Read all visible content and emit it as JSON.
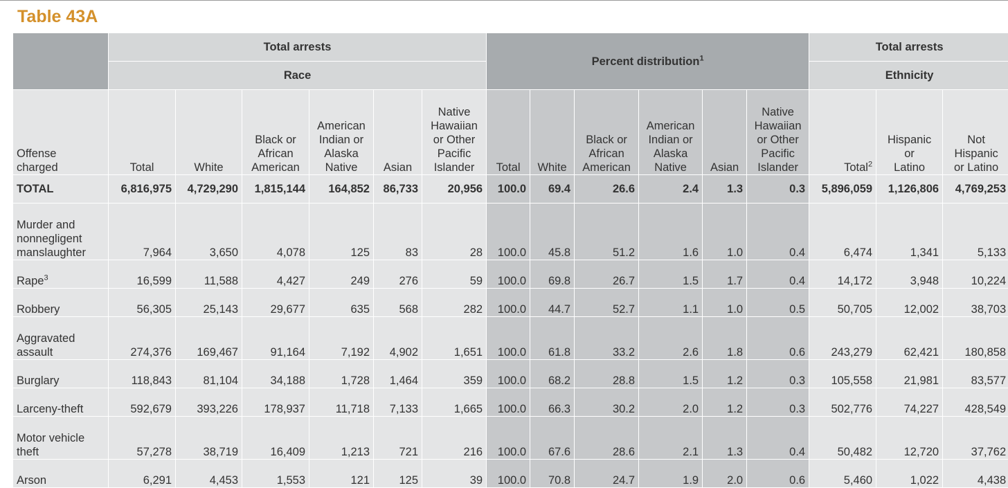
{
  "title": "Table 43A",
  "groups": {
    "total_arrests": "Total arrests",
    "race": "Race",
    "percent_distribution": "Percent distribution",
    "percent_distribution_note": "1",
    "total_arrests_2": "Total arrests",
    "ethnicity": "Ethnicity"
  },
  "columns": {
    "offense": [
      "Offense",
      "charged"
    ],
    "total": [
      "Total"
    ],
    "white": [
      "White"
    ],
    "black": [
      "Black or",
      "African",
      "American"
    ],
    "aian": [
      "American",
      "Indian or",
      "Alaska",
      "Native"
    ],
    "asian": [
      "Asian"
    ],
    "nhopi": [
      "Native",
      "Hawaiian",
      "or Other",
      "Pacific",
      "Islander"
    ],
    "eth_total": "Total",
    "eth_total_note": "2",
    "hispanic": [
      "Hispanic",
      "or",
      "Latino"
    ],
    "not_hispanic": [
      "Not",
      "Hispanic",
      "or Latino"
    ]
  },
  "rows": [
    {
      "offense": [
        "TOTAL"
      ],
      "note": "",
      "bold": true,
      "race": [
        "6,816,975",
        "4,729,290",
        "1,815,144",
        "164,852",
        "86,733",
        "20,956"
      ],
      "pct": [
        "100.0",
        "69.4",
        "26.6",
        "2.4",
        "1.3",
        "0.3"
      ],
      "eth": [
        "5,896,059",
        "1,126,806",
        "4,769,253"
      ]
    },
    {
      "offense": [
        "Murder and",
        "nonnegligent",
        "manslaughter"
      ],
      "note": "",
      "bold": false,
      "race": [
        "7,964",
        "3,650",
        "4,078",
        "125",
        "83",
        "28"
      ],
      "pct": [
        "100.0",
        "45.8",
        "51.2",
        "1.6",
        "1.0",
        "0.4"
      ],
      "eth": [
        "6,474",
        "1,341",
        "5,133"
      ]
    },
    {
      "offense": [
        "Rape"
      ],
      "note": "3",
      "bold": false,
      "race": [
        "16,599",
        "11,588",
        "4,427",
        "249",
        "276",
        "59"
      ],
      "pct": [
        "100.0",
        "69.8",
        "26.7",
        "1.5",
        "1.7",
        "0.4"
      ],
      "eth": [
        "14,172",
        "3,948",
        "10,224"
      ]
    },
    {
      "offense": [
        "Robbery"
      ],
      "note": "",
      "bold": false,
      "race": [
        "56,305",
        "25,143",
        "29,677",
        "635",
        "568",
        "282"
      ],
      "pct": [
        "100.0",
        "44.7",
        "52.7",
        "1.1",
        "1.0",
        "0.5"
      ],
      "eth": [
        "50,705",
        "12,002",
        "38,703"
      ]
    },
    {
      "offense": [
        "Aggravated",
        "assault"
      ],
      "note": "",
      "bold": false,
      "race": [
        "274,376",
        "169,467",
        "91,164",
        "7,192",
        "4,902",
        "1,651"
      ],
      "pct": [
        "100.0",
        "61.8",
        "33.2",
        "2.6",
        "1.8",
        "0.6"
      ],
      "eth": [
        "243,279",
        "62,421",
        "180,858"
      ]
    },
    {
      "offense": [
        "Burglary"
      ],
      "note": "",
      "bold": false,
      "race": [
        "118,843",
        "81,104",
        "34,188",
        "1,728",
        "1,464",
        "359"
      ],
      "pct": [
        "100.0",
        "68.2",
        "28.8",
        "1.5",
        "1.2",
        "0.3"
      ],
      "eth": [
        "105,558",
        "21,981",
        "83,577"
      ]
    },
    {
      "offense": [
        "Larceny-theft"
      ],
      "note": "",
      "bold": false,
      "race": [
        "592,679",
        "393,226",
        "178,937",
        "11,718",
        "7,133",
        "1,665"
      ],
      "pct": [
        "100.0",
        "66.3",
        "30.2",
        "2.0",
        "1.2",
        "0.3"
      ],
      "eth": [
        "502,776",
        "74,227",
        "428,549"
      ]
    },
    {
      "offense": [
        "Motor vehicle",
        "theft"
      ],
      "note": "",
      "bold": false,
      "race": [
        "57,278",
        "38,719",
        "16,409",
        "1,213",
        "721",
        "216"
      ],
      "pct": [
        "100.0",
        "67.6",
        "28.6",
        "2.1",
        "1.3",
        "0.4"
      ],
      "eth": [
        "50,482",
        "12,720",
        "37,762"
      ]
    },
    {
      "offense": [
        "Arson"
      ],
      "note": "",
      "bold": false,
      "race": [
        "6,291",
        "4,453",
        "1,553",
        "121",
        "125",
        "39"
      ],
      "pct": [
        "100.0",
        "70.8",
        "24.7",
        "1.9",
        "2.0",
        "0.6"
      ],
      "eth": [
        "5,460",
        "1,022",
        "4,438"
      ]
    }
  ]
}
